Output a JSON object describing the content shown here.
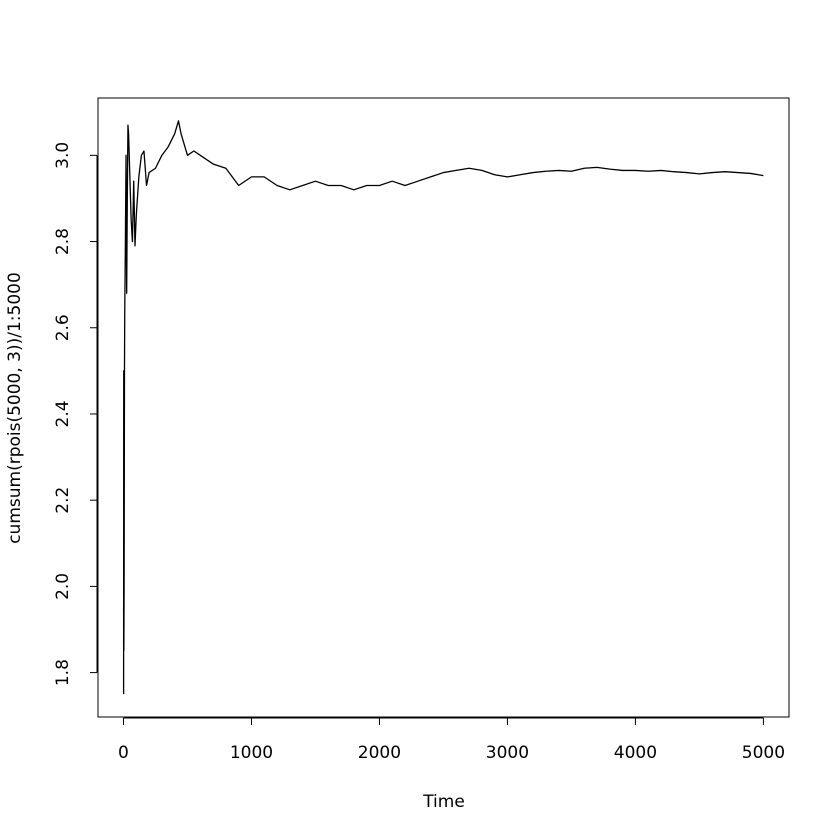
{
  "chart_data": {
    "type": "line",
    "x_label": "Time",
    "y_label": "cumsum(rpois(5000, 3))/1:5000",
    "color": "#000000",
    "x": [
      1,
      2,
      3,
      5,
      8,
      10,
      15,
      20,
      25,
      30,
      35,
      40,
      50,
      60,
      70,
      80,
      90,
      100,
      120,
      140,
      160,
      180,
      200,
      250,
      300,
      350,
      400,
      430,
      450,
      500,
      550,
      600,
      700,
      800,
      900,
      1000,
      1100,
      1200,
      1300,
      1400,
      1500,
      1600,
      1700,
      1800,
      1900,
      2000,
      2100,
      2200,
      2300,
      2400,
      2500,
      2600,
      2700,
      2800,
      2900,
      3000,
      3100,
      3200,
      3300,
      3400,
      3500,
      3600,
      3700,
      3800,
      3900,
      4000,
      4100,
      4200,
      4300,
      4400,
      4500,
      4600,
      4700,
      4800,
      4900,
      5000
    ],
    "values": [
      1.75,
      2.5,
      1.85,
      2.0,
      2.5,
      2.64,
      2.8,
      3.0,
      2.68,
      2.9,
      3.07,
      3.05,
      2.95,
      2.85,
      2.8,
      2.94,
      2.79,
      2.86,
      2.95,
      3.0,
      3.01,
      2.93,
      2.96,
      2.97,
      3.0,
      3.02,
      3.05,
      3.08,
      3.05,
      3.0,
      3.01,
      3.0,
      2.98,
      2.97,
      2.93,
      2.95,
      2.95,
      2.93,
      2.92,
      2.93,
      2.94,
      2.93,
      2.93,
      2.92,
      2.93,
      2.93,
      2.94,
      2.93,
      2.94,
      2.95,
      2.96,
      2.965,
      2.97,
      2.965,
      2.955,
      2.95,
      2.955,
      2.96,
      2.963,
      2.965,
      2.963,
      2.97,
      2.972,
      2.968,
      2.965,
      2.965,
      2.963,
      2.965,
      2.962,
      2.96,
      2.957,
      2.96,
      2.962,
      2.96,
      2.958,
      2.953
    ],
    "xlim": [
      -199,
      5200
    ],
    "ylim": [
      1.697,
      3.133
    ],
    "xticks": [
      0,
      1000,
      2000,
      3000,
      4000,
      5000
    ],
    "yticks": [
      1.8,
      {
        "value": 2,
        "label": "2.0"
      },
      2.2,
      2.4,
      2.6,
      2.8,
      {
        "value": 3,
        "label": "3.0"
      }
    ]
  }
}
